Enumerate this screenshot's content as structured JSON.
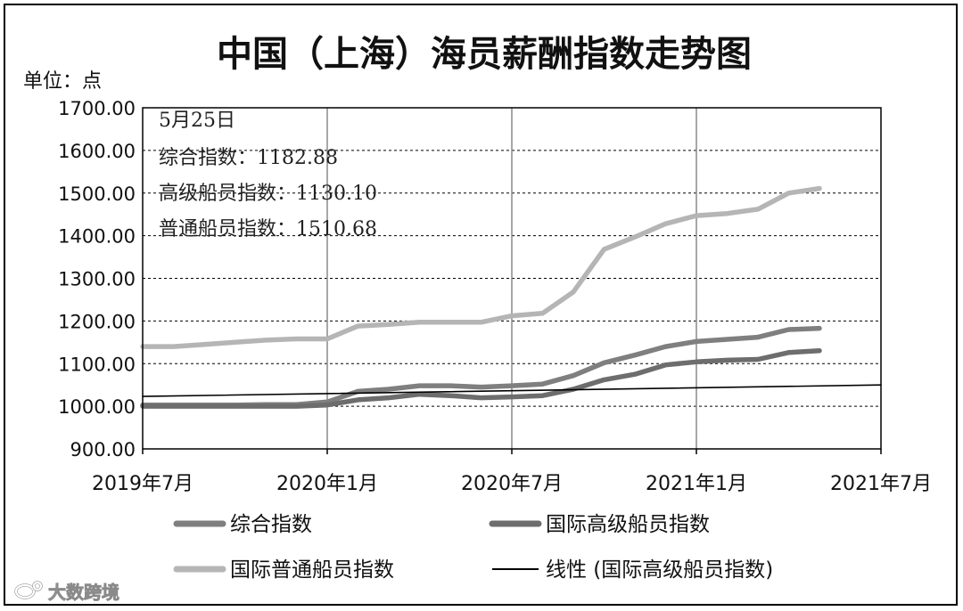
{
  "chart_data": {
    "type": "line",
    "title": "中国（上海）海员薪酬指数走势图",
    "y_unit_label": "单位：点",
    "ylim": [
      900,
      1700
    ],
    "y_ticks": [
      "1700.00",
      "1600.00",
      "1500.00",
      "1400.00",
      "1300.00",
      "1200.00",
      "1100.00",
      "1000.00",
      "900.00"
    ],
    "xlim": [
      "2019-07",
      "2021-07"
    ],
    "x_ticks": [
      "2019年7月",
      "2020年1月",
      "2020年7月",
      "2021年1月",
      "2021年7月"
    ],
    "grid": true,
    "annotation": {
      "date": "5月25日",
      "lines": [
        "综合指数：1182.88",
        "高级船员指数：1130.10",
        "普通船员指数：1510.68"
      ]
    },
    "series": [
      {
        "name": "综合指数",
        "color": "#7f7f7f",
        "x": [
          "2019-07",
          "2019-08",
          "2019-09",
          "2019-10",
          "2019-11",
          "2019-12",
          "2020-01",
          "2020-02",
          "2020-03",
          "2020-04",
          "2020-05",
          "2020-06",
          "2020-07",
          "2020-08",
          "2020-09",
          "2020-10",
          "2020-11",
          "2020-12",
          "2021-01",
          "2021-02",
          "2021-03",
          "2021-04",
          "2021-05"
        ],
        "values": [
          1003,
          1003,
          1003,
          1003,
          1004,
          1004,
          1010,
          1035,
          1040,
          1048,
          1048,
          1045,
          1048,
          1052,
          1072,
          1102,
          1120,
          1140,
          1152,
          1157,
          1162,
          1180,
          1182.88
        ]
      },
      {
        "name": "国际高级船员指数",
        "color": "#6d6d6d",
        "x": [
          "2019-07",
          "2019-08",
          "2019-09",
          "2019-10",
          "2019-11",
          "2019-12",
          "2020-01",
          "2020-02",
          "2020-03",
          "2020-04",
          "2020-05",
          "2020-06",
          "2020-07",
          "2020-08",
          "2020-09",
          "2020-10",
          "2020-11",
          "2020-12",
          "2021-01",
          "2021-02",
          "2021-03",
          "2021-04",
          "2021-05"
        ],
        "values": [
          1000,
          1000,
          1000,
          1000,
          1000,
          1000,
          1003,
          1015,
          1020,
          1028,
          1025,
          1020,
          1022,
          1025,
          1040,
          1062,
          1075,
          1097,
          1104,
          1108,
          1110,
          1126,
          1130.1
        ]
      },
      {
        "name": "国际普通船员指数",
        "color": "#b5b5b5",
        "x": [
          "2019-07",
          "2019-08",
          "2019-09",
          "2019-10",
          "2019-11",
          "2019-12",
          "2020-01",
          "2020-02",
          "2020-03",
          "2020-04",
          "2020-05",
          "2020-06",
          "2020-07",
          "2020-08",
          "2020-09",
          "2020-10",
          "2020-11",
          "2020-12",
          "2021-01",
          "2021-02",
          "2021-03",
          "2021-04",
          "2021-05"
        ],
        "values": [
          1140,
          1140,
          1145,
          1150,
          1155,
          1158,
          1158,
          1188,
          1192,
          1197,
          1197,
          1197,
          1212,
          1218,
          1268,
          1368,
          1397,
          1428,
          1447,
          1452,
          1462,
          1500,
          1510.68
        ]
      },
      {
        "name": "线性 (国际高级船员指数)",
        "color": "#000000",
        "x": [
          "2019-07",
          "2021-07"
        ],
        "values": [
          1023,
          1050
        ]
      }
    ],
    "legend": [
      {
        "label": "综合指数",
        "color": "#7f7f7f"
      },
      {
        "label": "国际高级船员指数",
        "color": "#6d6d6d"
      },
      {
        "label": "国际普通船员指数",
        "color": "#b5b5b5"
      },
      {
        "label": "线性 (国际高级船员指数)",
        "color": "#000000"
      }
    ]
  },
  "watermark": "大数跨境"
}
